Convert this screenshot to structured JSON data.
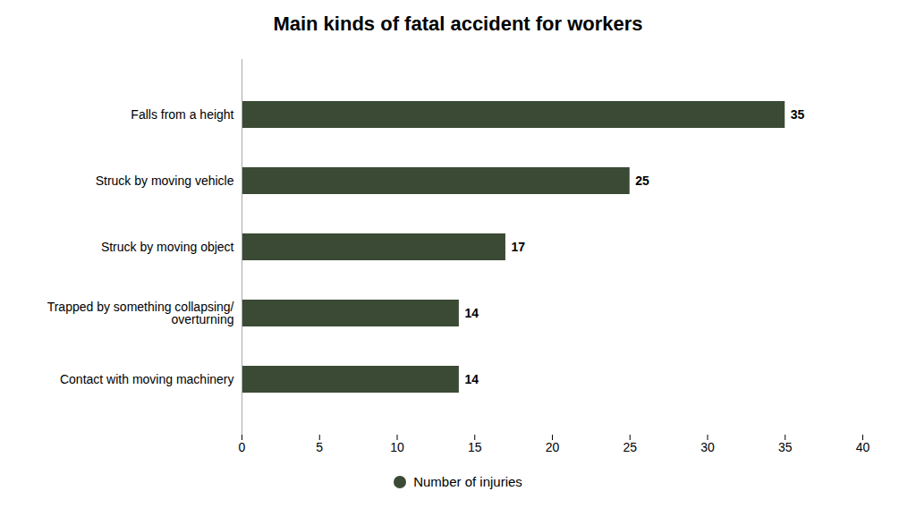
{
  "chart_data": {
    "type": "bar",
    "orientation": "horizontal",
    "title": "Main kinds of fatal accident for workers",
    "categories": [
      "Contact with moving machinery",
      "Trapped by something collapsing/\noverturning",
      "Struck by moving object",
      "Struck by moving vehicle",
      "Falls from a height"
    ],
    "series": [
      {
        "name": "Number of injuries",
        "color": "#3b4a34",
        "values": [
          14,
          14,
          17,
          25,
          35
        ]
      }
    ],
    "xlim": [
      0,
      40
    ],
    "xticks": [
      0,
      5,
      10,
      15,
      20,
      25,
      30,
      35,
      40
    ],
    "grid": false,
    "data_labels": true,
    "legend": "bottom"
  }
}
